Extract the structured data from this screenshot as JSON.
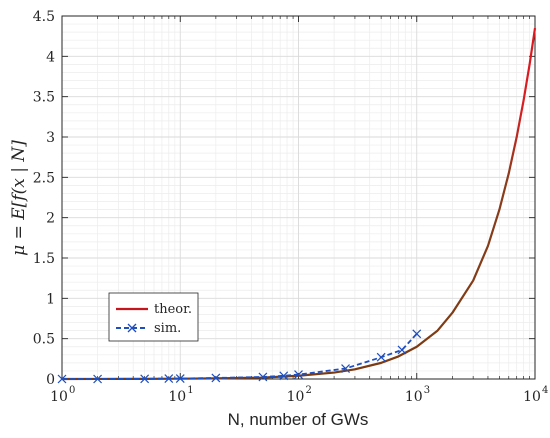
{
  "chart_data": {
    "type": "line",
    "xscale": "log",
    "xlim": [
      1,
      10000
    ],
    "ylim": [
      0,
      4.5
    ],
    "grid": true,
    "xlabel": "N, number of GWs",
    "ylabel": "μ = E[f(x | N]",
    "legend_position": "bottom-left",
    "x_ticks": [
      {
        "base": "10",
        "exp": "0"
      },
      {
        "base": "10",
        "exp": "1"
      },
      {
        "base": "10",
        "exp": "2"
      },
      {
        "base": "10",
        "exp": "3"
      },
      {
        "base": "10",
        "exp": "4"
      }
    ],
    "y_ticks": [
      "0",
      "0.5",
      "1",
      "1.5",
      "2",
      "2.5",
      "3",
      "3.5",
      "4",
      "4.5"
    ],
    "series": [
      {
        "name": "theor.",
        "style": "solid",
        "color": "#e0161e",
        "x": [
          1,
          2,
          5,
          10,
          20,
          50,
          100,
          200,
          300,
          500,
          700,
          1000,
          1500,
          2000,
          3000,
          4000,
          5000,
          6000,
          7000,
          8000,
          9000,
          10000
        ],
        "y": [
          0.0004,
          0.001,
          0.002,
          0.004,
          0.008,
          0.018,
          0.04,
          0.08,
          0.12,
          0.2,
          0.28,
          0.4,
          0.6,
          0.82,
          1.22,
          1.65,
          2.1,
          2.55,
          3.0,
          3.45,
          3.9,
          4.35
        ]
      },
      {
        "name": "sim.",
        "style": "dashed",
        "marker": "x",
        "color": "#1f4fbf",
        "x": [
          1,
          2,
          5,
          8,
          10,
          20,
          50,
          75,
          100,
          250,
          500,
          750,
          1000
        ],
        "y": [
          0.0,
          0.0,
          0.002,
          0.005,
          0.006,
          0.013,
          0.025,
          0.04,
          0.055,
          0.13,
          0.27,
          0.36,
          0.56
        ]
      }
    ]
  }
}
